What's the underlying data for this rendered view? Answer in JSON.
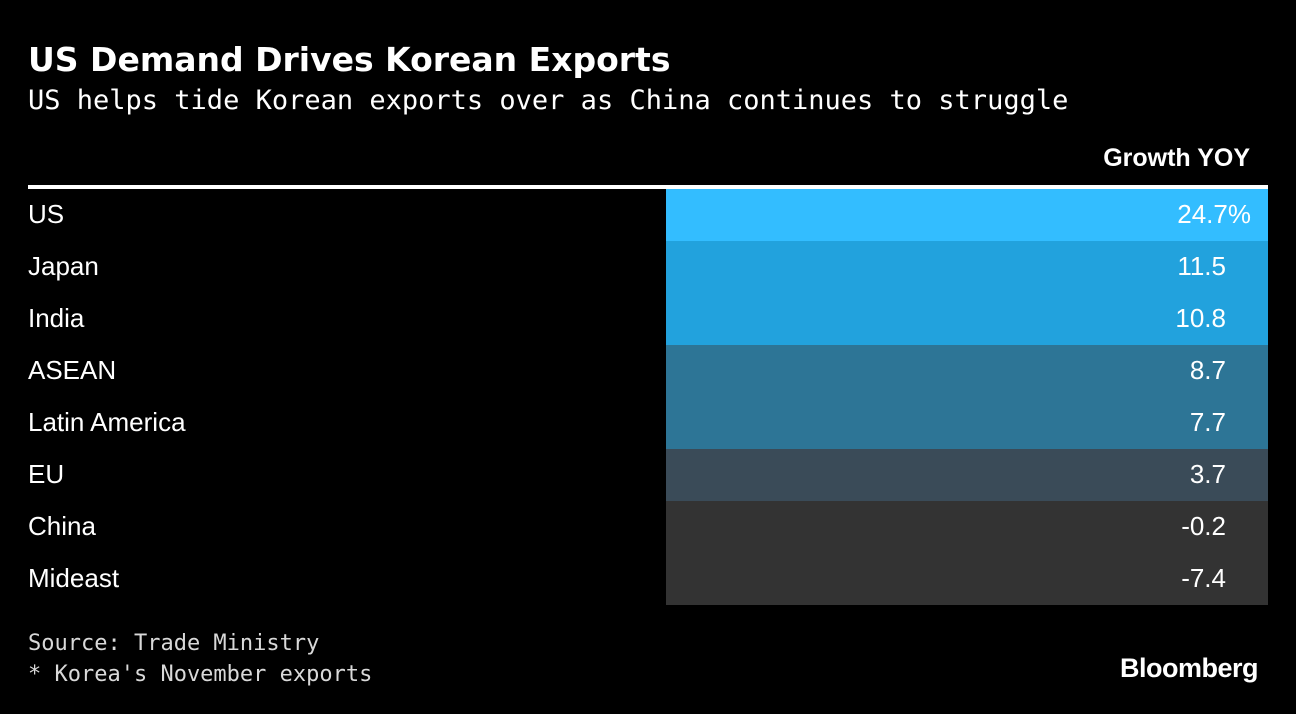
{
  "title": "US Demand Drives Korean Exports",
  "subtitle": "US helps tide Korean exports over as China continues to struggle",
  "footer": {
    "source": "Source: Trade Ministry",
    "note": "* Korea's November exports",
    "brand": "Bloomberg"
  },
  "colors": {
    "background": "#000000",
    "text": "#ffffff",
    "tier_high": "#33bdff",
    "tier_mid_high": "#22a2dd",
    "tier_mid": "#2d7596",
    "tier_low": "#3a4b58",
    "tier_negative": "#333333"
  },
  "chart_data": {
    "type": "table",
    "column_header": "Growth YOY",
    "rows": [
      {
        "label": "US",
        "value": 24.7,
        "display": "24.7%",
        "color": "#33bdff"
      },
      {
        "label": "Japan",
        "value": 11.5,
        "display": "11.5",
        "color": "#22a2dd"
      },
      {
        "label": "India",
        "value": 10.8,
        "display": "10.8",
        "color": "#22a2dd"
      },
      {
        "label": "ASEAN",
        "value": 8.7,
        "display": "8.7",
        "color": "#2d7596"
      },
      {
        "label": "Latin America",
        "value": 7.7,
        "display": "7.7",
        "color": "#2d7596"
      },
      {
        "label": "EU",
        "value": 3.7,
        "display": "3.7",
        "color": "#3a4b58"
      },
      {
        "label": "China",
        "value": -0.2,
        "display": "-0.2",
        "color": "#333333"
      },
      {
        "label": "Mideast",
        "value": -7.4,
        "display": "-7.4",
        "color": "#333333"
      }
    ]
  }
}
